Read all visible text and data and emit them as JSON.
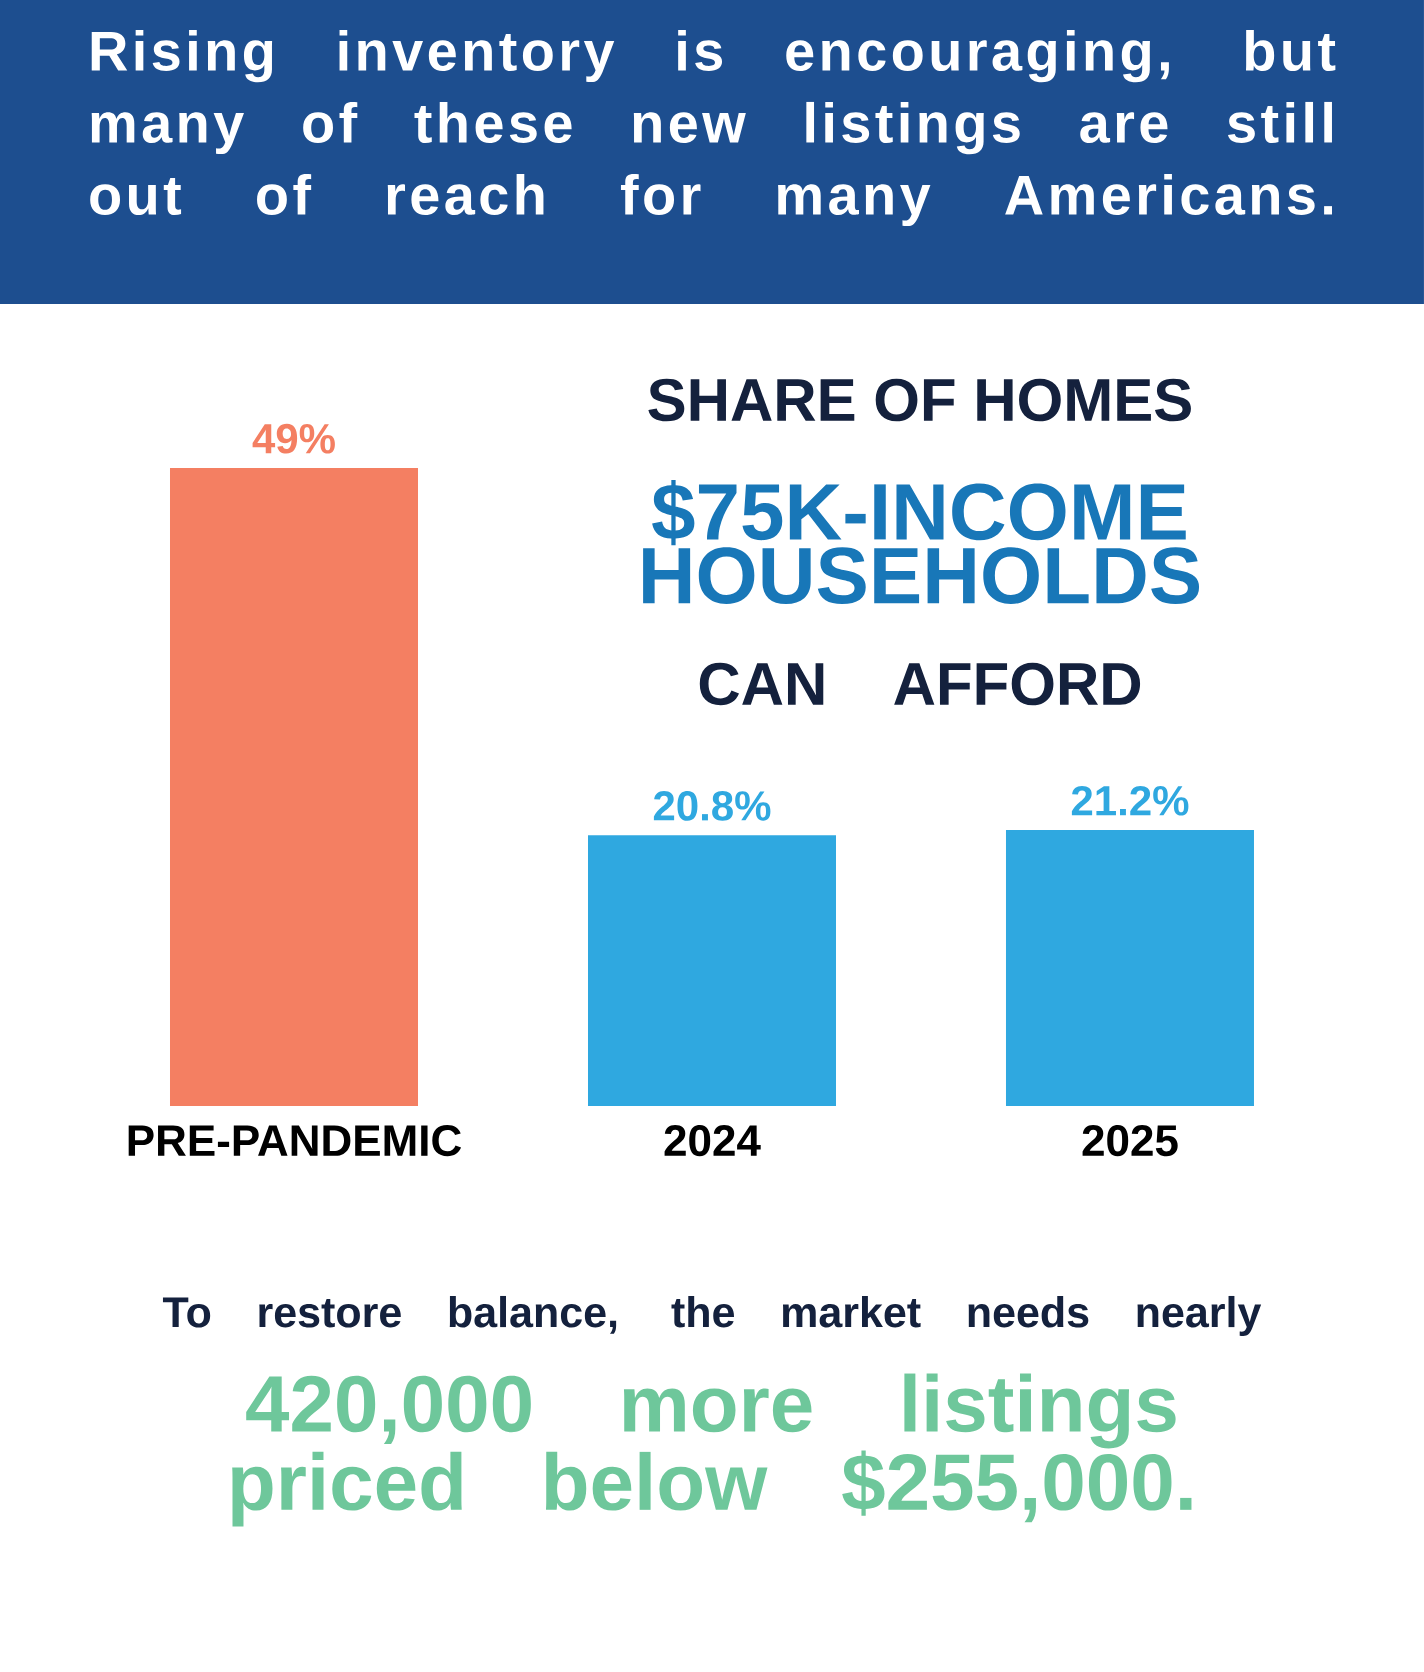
{
  "chart_data": {
    "type": "bar",
    "title": "Rising inventory is encouraging, but many of these new listings are still out of reach for many Americans.",
    "subtitle": "SHARE OF HOMES",
    "categories": [
      "PRE-PANDEMIC",
      "2024",
      "2025"
    ],
    "values": [
      49,
      20.8,
      21.2
    ],
    "value_labels": [
      "49%",
      "20.8%",
      "21.2%"
    ],
    "colors": [
      "#f47f62",
      "#2fa8e0",
      "#2fa8e0"
    ],
    "annotations": [
      "$75K-INCOME HOUSEHOLDS",
      "CAN AFFORD",
      "To restore balance, the market needs nearly",
      "420,000 more listings priced below $255,000."
    ]
  }
}
